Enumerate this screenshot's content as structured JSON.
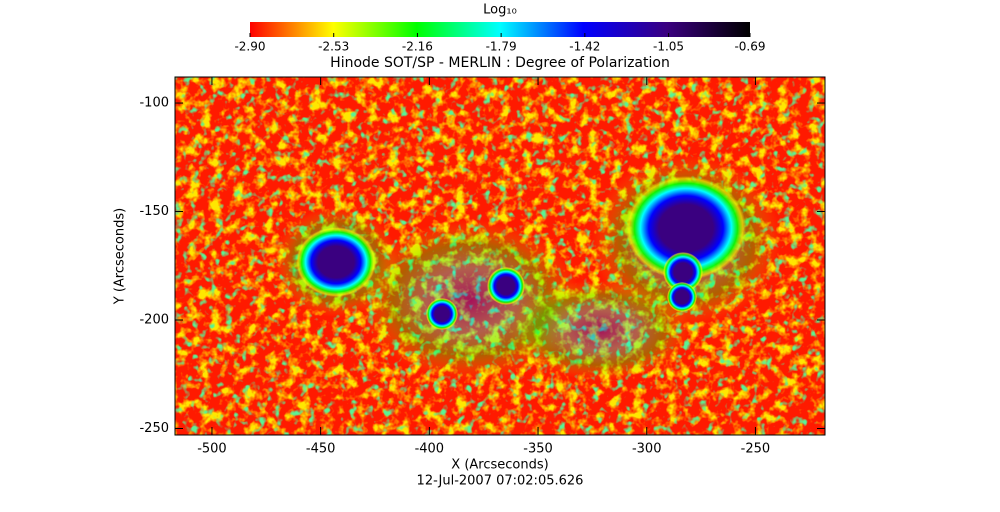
{
  "chart_data": {
    "type": "image",
    "title": "Hinode SOT/SP - MERLIN : Degree of Polarization",
    "colorbar_label": "Log₁₀",
    "annotation": "12-Jul-2007 07:02:05.626",
    "xlabel": "X (Arcseconds)",
    "ylabel": "Y (Arcseconds)",
    "xlim": [
      -517,
      -218
    ],
    "ylim": [
      -253,
      -88
    ],
    "xticks": [
      -500,
      -450,
      -400,
      -350,
      -300,
      -250
    ],
    "yticks": [
      -100,
      -150,
      -200,
      -250
    ],
    "clim": [
      -2.9,
      -0.69
    ],
    "cticks": [
      {
        "value": -2.9,
        "label": "-2.90"
      },
      {
        "value": -2.53,
        "label": "-2.53"
      },
      {
        "value": -2.16,
        "label": "-2.16"
      },
      {
        "value": -1.79,
        "label": "-1.79"
      },
      {
        "value": -1.42,
        "label": "-1.42"
      },
      {
        "value": -1.05,
        "label": "-1.05"
      },
      {
        "value": -0.69,
        "label": "-0.69"
      }
    ],
    "colormap": [
      "#ff0000",
      "#ffff00",
      "#00ff00",
      "#00ffff",
      "#0000ff",
      "#3a0080",
      "#000000"
    ]
  }
}
